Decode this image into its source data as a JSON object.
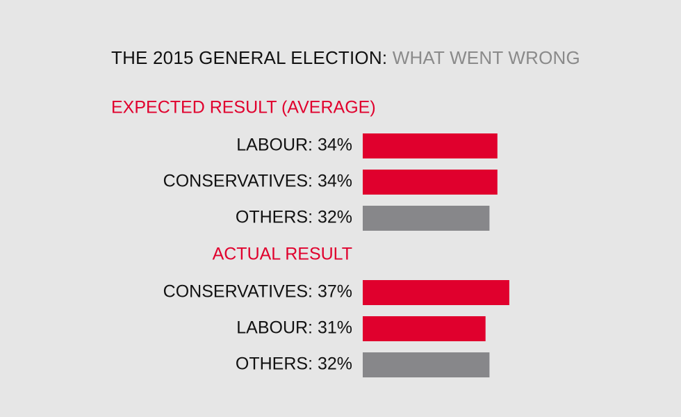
{
  "title_main": "THE 2015 GENERAL ELECTION:",
  "title_sub": "WHAT WENT WRONG",
  "colors": {
    "accent": "#e0002d",
    "grey_bar": "#87878a",
    "text": "#111111",
    "subtitle": "#8a8a8a",
    "background": "#e6e6e6"
  },
  "chart_data": {
    "type": "bar",
    "orientation": "horizontal",
    "unit": "%",
    "xlim": [
      0,
      40
    ],
    "grid": false,
    "groups": [
      {
        "name": "EXPECTED RESULT (AVERAGE)",
        "items": [
          {
            "label": "LABOUR: 34%",
            "party": "LABOUR",
            "value": 34,
            "color": "#e0002d"
          },
          {
            "label": "CONSERVATIVES: 34%",
            "party": "CONSERVATIVES",
            "value": 34,
            "color": "#e0002d"
          },
          {
            "label": "OTHERS: 32%",
            "party": "OTHERS",
            "value": 32,
            "color": "#87878a"
          }
        ]
      },
      {
        "name": "ACTUAL RESULT",
        "items": [
          {
            "label": "CONSERVATIVES: 37%",
            "party": "CONSERVATIVES",
            "value": 37,
            "color": "#e0002d"
          },
          {
            "label": "LABOUR: 31%",
            "party": "LABOUR",
            "value": 31,
            "color": "#e0002d"
          },
          {
            "label": "OTHERS: 32%",
            "party": "OTHERS",
            "value": 32,
            "color": "#87878a"
          }
        ]
      }
    ]
  }
}
